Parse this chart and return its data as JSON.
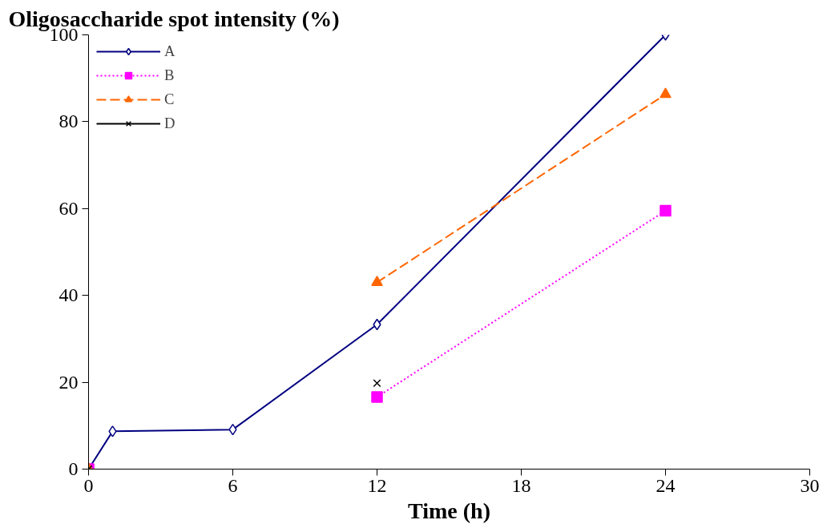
{
  "chart_data": {
    "type": "line",
    "title": "Oligosaccharide spot intensity (%)",
    "xlabel": "Time (h)",
    "x": [
      0,
      1,
      6,
      12,
      24
    ],
    "xlim": [
      0,
      30
    ],
    "xticks": [
      0,
      6,
      12,
      18,
      24,
      30
    ],
    "ylim": [
      0,
      100
    ],
    "yticks": [
      0,
      20,
      40,
      60,
      80,
      100
    ],
    "grid": false,
    "legend": "top left",
    "series": [
      {
        "name": "A",
        "color": "#000080",
        "values": [
          0,
          8.7,
          9.1,
          33.3,
          100
        ],
        "marker": "diamond",
        "line_style": "solid"
      },
      {
        "name": "B",
        "color": "#ff00ff",
        "values": [
          0,
          null,
          null,
          16.6,
          59.5
        ],
        "marker": "square",
        "line_style": "dotted"
      },
      {
        "name": "C",
        "color": "#ff6600",
        "values": [
          0,
          null,
          null,
          43.0,
          86.3
        ],
        "marker": "triangle",
        "line_style": "dashed"
      },
      {
        "name": "D",
        "color": "#000000",
        "values": [
          0,
          null,
          null,
          19.8,
          null
        ],
        "marker": "cross",
        "line_style": "solid"
      }
    ]
  }
}
